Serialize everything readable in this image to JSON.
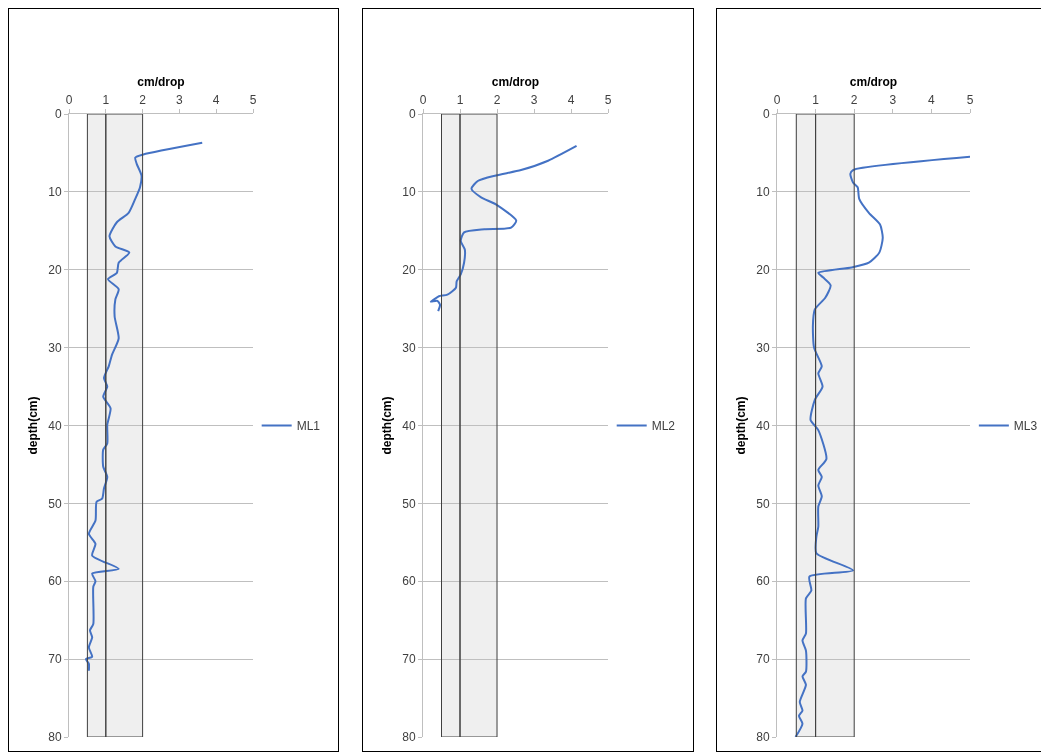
{
  "chart_data": [
    {
      "type": "line",
      "xlabel": "cm/drop",
      "ylabel": "depth(cm)",
      "xlim": [
        0,
        5
      ],
      "xticks": [
        0,
        1,
        2,
        3,
        4,
        5
      ],
      "ylim": [
        80,
        0
      ],
      "yticks": [
        0,
        10,
        20,
        30,
        40,
        50,
        60,
        70,
        80
      ],
      "grid": "y",
      "legend": "right",
      "marker": "none",
      "line_style": "solid",
      "bands": [
        {
          "axis": "x",
          "from": 0.5,
          "to": 1,
          "color": "#404040"
        },
        {
          "axis": "x",
          "from": 1,
          "to": 2,
          "color": "#404040"
        }
      ],
      "series": [
        {
          "name": "ML1",
          "color": "#4472c4",
          "x": [
            3.62,
            2.02,
            1.8,
            1.84,
            1.97,
            1.93,
            1.8,
            1.62,
            1.3,
            1.1,
            1.26,
            1.64,
            1.35,
            1.3,
            1.06,
            1.35,
            1.26,
            1.24,
            1.35,
            1.17,
            1.08,
            0.95,
            1.04,
            0.93,
            1.13,
            1.04,
            1.04,
            0.93,
            0.93,
            1.04,
            0.95,
            0.9,
            0.75,
            0.72,
            0.54,
            0.72,
            0.63,
            1.35,
            0.63,
            0.72,
            0.66,
            0.66,
            0.57,
            0.63,
            0.54,
            0.63,
            0.46,
            0.54,
            0.54
          ],
          "values": [
            3.7,
            5.2,
            5.6,
            6.4,
            7.9,
            9.4,
            10.9,
            12.7,
            13.9,
            15.7,
            17,
            17.8,
            19.1,
            20.4,
            21.2,
            22.5,
            23.8,
            26,
            28.8,
            30.9,
            32.4,
            33.9,
            35,
            36.3,
            37.8,
            39.9,
            42.3,
            43.1,
            45.3,
            46.6,
            48.1,
            49.4,
            49.8,
            52.2,
            53.9,
            55.2,
            56.7,
            58.4,
            59,
            60,
            60.7,
            65.5,
            66.3,
            67.2,
            68.5,
            69.7,
            70,
            70.6,
            71.5
          ]
        }
      ]
    },
    {
      "type": "line",
      "xlabel": "cm/drop",
      "ylabel": "depth(cm)",
      "xlim": [
        0,
        5
      ],
      "xticks": [
        0,
        1,
        2,
        3,
        4,
        5
      ],
      "ylim": [
        80,
        0
      ],
      "yticks": [
        0,
        10,
        20,
        30,
        40,
        50,
        60,
        70,
        80
      ],
      "grid": "y",
      "legend": "right",
      "marker": "none",
      "line_style": "solid",
      "bands": [
        {
          "axis": "x",
          "from": 0.5,
          "to": 1,
          "color": "#404040"
        },
        {
          "axis": "x",
          "from": 1,
          "to": 2,
          "color": "#404040"
        }
      ],
      "series": [
        {
          "name": "ML2",
          "color": "#4472c4",
          "x": [
            4.15,
            3.38,
            2.65,
            1.97,
            1.48,
            1.31,
            1.57,
            1.97,
            2.52,
            2.38,
            1.66,
            1.11,
            1.02,
            1.13,
            1.11,
            1.02,
            0.91,
            0.89,
            0.66,
            0.43,
            0.3,
            0.21,
            0.39,
            0.46,
            0.41
          ],
          "values": [
            4.1,
            6,
            7.2,
            7.9,
            8.6,
            9.6,
            10.7,
            11.6,
            13.7,
            14.6,
            14.8,
            15.2,
            16.3,
            17.4,
            19.1,
            20.6,
            21.5,
            22.3,
            23.2,
            23.4,
            23.8,
            24.1,
            24,
            24.5,
            25.3
          ]
        }
      ]
    },
    {
      "type": "line",
      "xlabel": "cm/drop",
      "ylabel": "depth(cm)",
      "xlim": [
        0,
        5
      ],
      "xticks": [
        0,
        1,
        2,
        3,
        4,
        5
      ],
      "ylim": [
        80,
        0
      ],
      "yticks": [
        0,
        10,
        20,
        30,
        40,
        50,
        60,
        70,
        80
      ],
      "grid": "y",
      "legend": "right",
      "marker": "none",
      "line_style": "solid",
      "bands": [
        {
          "axis": "x",
          "from": 0.5,
          "to": 1,
          "color": "#404040"
        },
        {
          "axis": "x",
          "from": 1,
          "to": 2,
          "color": "#404040"
        }
      ],
      "series": [
        {
          "name": "ML3",
          "color": "#4472c4",
          "x": [
            5,
            1.97,
            1.9,
            1.97,
            2.09,
            2.13,
            2.38,
            2.67,
            2.74,
            2.65,
            2.38,
            1.93,
            1.07,
            1.2,
            1.39,
            1.25,
            0.98,
            0.93,
            0.96,
            1.16,
            1.07,
            1.18,
            0.98,
            0.87,
            1.07,
            1.28,
            1.07,
            1.16,
            1.07,
            1.16,
            1.07,
            1.07,
            1.02,
            1.02,
            1.97,
            0.84,
            0.89,
            0.75,
            0.75,
            0.66,
            0.75,
            0.75,
            0.66,
            0.75,
            0.59,
            0.66,
            0.57,
            0.66,
            0.48
          ],
          "values": [
            5.5,
            7.2,
            7.7,
            8.8,
            9.4,
            10.9,
            12.7,
            14.2,
            15.9,
            17.8,
            19.1,
            19.7,
            20.4,
            21,
            22,
            23.6,
            25.1,
            27.2,
            30,
            32.4,
            33.3,
            35,
            36.7,
            39.3,
            40.6,
            44.3,
            45.7,
            46.6,
            47.7,
            49.1,
            50.4,
            53,
            54.3,
            56.4,
            58.6,
            59.4,
            61.2,
            62.2,
            66.7,
            67.6,
            68.9,
            71.6,
            72.2,
            73.3,
            75.5,
            76.6,
            77.3,
            78.3,
            80
          ]
        }
      ]
    }
  ]
}
